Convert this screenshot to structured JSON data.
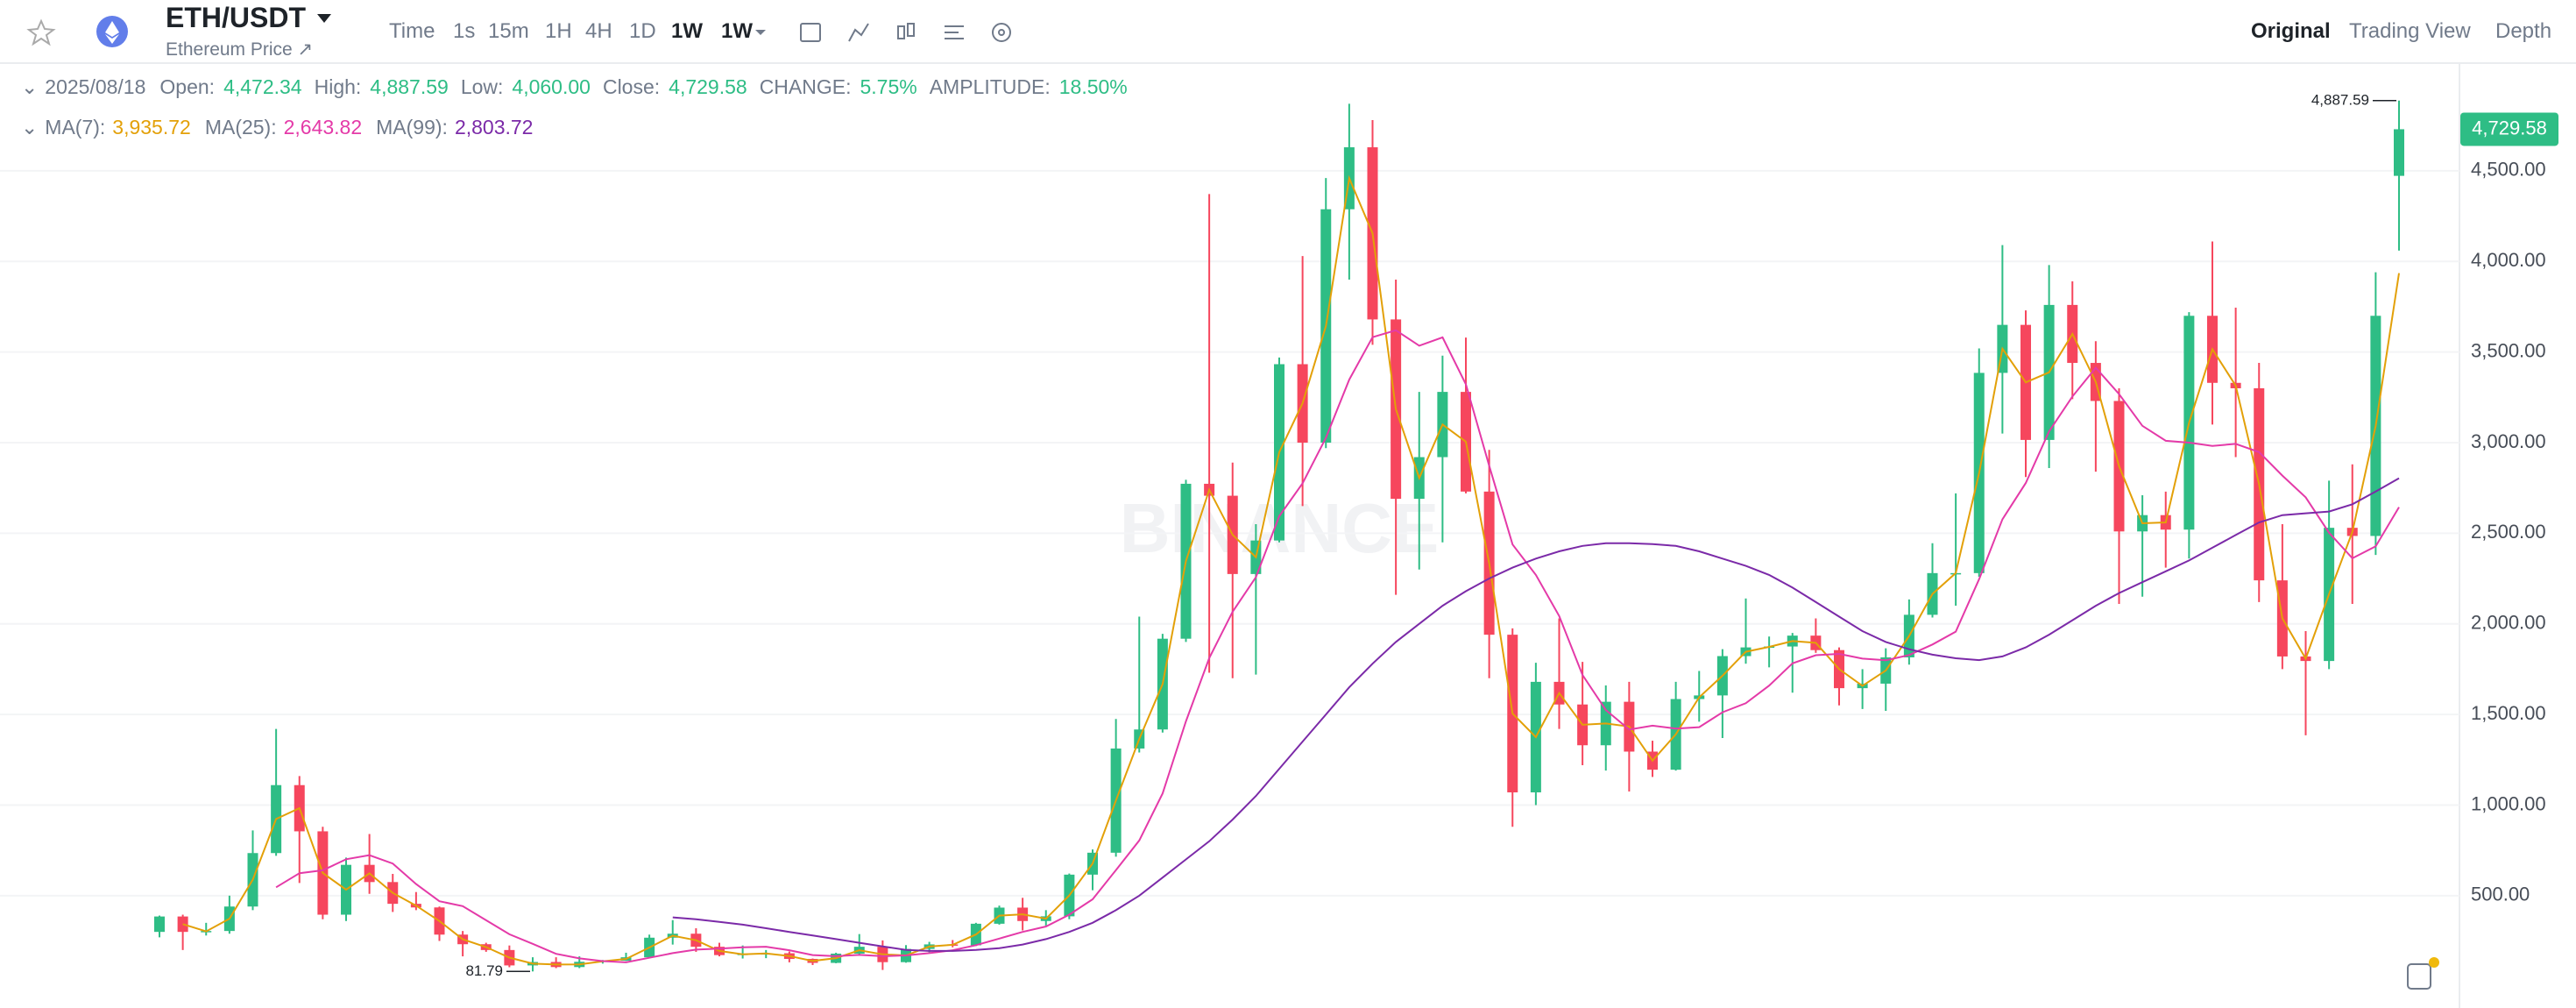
{
  "header": {
    "symbol": "ETH/USDT",
    "subtitle": "Ethereum Price ↗",
    "intervals": [
      "Time",
      "1s",
      "15m",
      "1H",
      "4H",
      "1D",
      "1W",
      "1W"
    ],
    "views": [
      "Original",
      "Trading View",
      "Depth"
    ]
  },
  "info": {
    "date": "2025/08/18",
    "items": [
      {
        "label": "Open:",
        "value": "4,472.34"
      },
      {
        "label": "High:",
        "value": "4,887.59"
      },
      {
        "label": "Low:",
        "value": "4,060.00"
      },
      {
        "label": "Close:",
        "value": "4,729.58"
      },
      {
        "label": "CHANGE:",
        "value": "5.75%"
      },
      {
        "label": "AMPLITUDE:",
        "value": "18.50%"
      }
    ]
  },
  "chart_data": {
    "type": "candlestick",
    "watermark": "BINANCE",
    "up_color": "#2ebd85",
    "down_color": "#f6465d",
    "open": [
      300,
      385,
      300,
      305,
      440,
      735,
      1110,
      855,
      395,
      670,
      575,
      455,
      435,
      285,
      232,
      200,
      115,
      134,
      106,
      135,
      141,
      160,
      268,
      290,
      218,
      172,
      180,
      182,
      151,
      129,
      180,
      218,
      133,
      206,
      231,
      226,
      345,
      434,
      360,
      386,
      616,
      737,
      1312,
      1417,
      1918,
      2773,
      2707,
      2275,
      2460,
      3433,
      3000,
      4288,
      4630,
      3680,
      2690,
      2920,
      3280,
      2730,
      1940,
      1070,
      1680,
      1555,
      1330,
      1570,
      1295,
      1195,
      1585,
      1605,
      1822,
      1870,
      1875,
      1935,
      1855,
      1645,
      1670,
      1815,
      2050,
      2280,
      2280,
      3385,
      3650,
      3015,
      3760,
      3440,
      3230,
      2510,
      2600,
      2520,
      3700,
      3330,
      3300,
      2240,
      1820,
      1795,
      2530,
      2485,
      4472.34
    ],
    "high": [
      390,
      395,
      350,
      500,
      860,
      1420,
      1160,
      880,
      710,
      840,
      620,
      520,
      440,
      305,
      240,
      225,
      160,
      160,
      165,
      145,
      185,
      285,
      365,
      320,
      240,
      225,
      200,
      192,
      153,
      185,
      288,
      253,
      227,
      245,
      255,
      350,
      445,
      488,
      420,
      622,
      755,
      1475,
      2040,
      1945,
      2795,
      4372,
      2890,
      2550,
      3470,
      4030,
      4460,
      4870,
      4780,
      3900,
      3280,
      3480,
      3580,
      2960,
      1975,
      1785,
      2030,
      1790,
      1660,
      1680,
      1355,
      1680,
      1740,
      1860,
      2140,
      1930,
      1950,
      2030,
      1870,
      1750,
      1865,
      2135,
      2445,
      2720,
      3520,
      4090,
      3730,
      3980,
      3890,
      3560,
      3300,
      2710,
      2730,
      3720,
      4110,
      3745,
      3440,
      2550,
      1960,
      2790,
      2880,
      3940,
      4887.59
    ],
    "low": [
      270,
      200,
      280,
      290,
      420,
      720,
      570,
      370,
      360,
      510,
      410,
      420,
      250,
      165,
      190,
      105,
      81.79,
      100,
      100,
      125,
      140,
      155,
      230,
      190,
      165,
      153,
      155,
      132,
      117,
      127,
      175,
      90,
      130,
      180,
      215,
      222,
      340,
      308,
      335,
      370,
      530,
      715,
      1290,
      1400,
      1900,
      1730,
      1700,
      1720,
      2450,
      2650,
      2970,
      3900,
      3540,
      2160,
      2300,
      2450,
      2720,
      1700,
      880,
      1000,
      1420,
      1220,
      1190,
      1075,
      1155,
      1190,
      1460,
      1370,
      1780,
      1760,
      1620,
      1840,
      1550,
      1530,
      1520,
      1775,
      2035,
      2100,
      2260,
      3050,
      2810,
      2860,
      3240,
      2840,
      2110,
      2150,
      2310,
      2360,
      3100,
      2920,
      2120,
      1750,
      1385,
      1750,
      2110,
      2380,
      4060
    ],
    "close": [
      385,
      300,
      305,
      440,
      735,
      1110,
      855,
      395,
      670,
      575,
      455,
      435,
      285,
      232,
      200,
      115,
      134,
      106,
      135,
      141,
      160,
      268,
      290,
      218,
      172,
      180,
      182,
      151,
      129,
      180,
      218,
      133,
      206,
      231,
      226,
      345,
      434,
      360,
      386,
      616,
      737,
      1312,
      1417,
      1918,
      2773,
      2707,
      2275,
      2460,
      3433,
      3000,
      4288,
      4630,
      3680,
      2690,
      2920,
      3280,
      2730,
      1940,
      1070,
      1680,
      1555,
      1330,
      1570,
      1295,
      1195,
      1585,
      1605,
      1822,
      1870,
      1875,
      1935,
      1855,
      1645,
      1670,
      1815,
      2050,
      2280,
      2280,
      3385,
      3650,
      3015,
      3760,
      3440,
      3230,
      2510,
      2600,
      2520,
      3700,
      3330,
      3300,
      2240,
      1820,
      1795,
      2530,
      2485,
      3700,
      4729.58
    ],
    "series": [
      {
        "name": "MA(7):",
        "color": "#e3a008",
        "value_label": "3,935.72",
        "values": [
          null,
          343,
          303,
          373,
          588,
          923,
          983,
          625,
          533,
          623,
          515,
          445,
          360,
          259,
          216,
          158,
          125,
          120,
          121,
          138,
          151,
          214,
          279,
          254,
          195,
          176,
          181,
          167,
          140,
          155,
          199,
          176,
          170,
          219,
          229,
          286,
          390,
          397,
          373,
          501,
          677,
          1025,
          1365,
          1668,
          2346,
          2740,
          2491,
          2368,
          2947,
          3217,
          3644,
          4459,
          4155,
          3185,
          2805,
          3100,
          3005,
          2335,
          1505,
          1375,
          1618,
          1443,
          1450,
          1433,
          1245,
          1390,
          1595,
          1714,
          1846,
          1873,
          1905,
          1895,
          1750,
          1658,
          1743,
          1933,
          2165,
          2280,
          2833,
          3518,
          3333,
          3388,
          3600,
          3335,
          2870,
          2555,
          2560,
          3110,
          3515,
          3315,
          2770,
          2030,
          1808,
          2163,
          2508,
          3093,
          3935.72
        ]
      },
      {
        "name": "MA(25):",
        "color": "#e43aa8",
        "value_label": "2,643.82",
        "values": [
          null,
          null,
          null,
          null,
          null,
          546,
          624,
          640,
          701,
          723,
          677,
          564,
          469,
          442,
          364,
          287,
          234,
          179,
          154,
          139,
          132,
          157,
          183,
          202,
          208,
          215,
          218,
          199,
          172,
          166,
          173,
          166,
          170,
          183,
          199,
          227,
          263,
          300,
          330,
          395,
          480,
          641,
          805,
          1064,
          1462,
          1811,
          2067,
          2258,
          2594,
          2775,
          3027,
          3348,
          3582,
          3620,
          3535,
          3581,
          3322,
          2873,
          2438,
          2270,
          2043,
          1718,
          1524,
          1417,
          1438,
          1422,
          1430,
          1512,
          1562,
          1659,
          1782,
          1827,
          1834,
          1808,
          1799,
          1828,
          1886,
          1957,
          2247,
          2577,
          2777,
          3062,
          3255,
          3413,
          3268,
          3093,
          3010,
          3000,
          2982,
          2993,
          2948,
          2818,
          2698,
          2503,
          2362,
          2428,
          2643.82
        ]
      },
      {
        "name": "MA(99):",
        "color": "#7b2aa8",
        "value_label": "2,803.72",
        "values": [
          null,
          null,
          null,
          null,
          null,
          null,
          null,
          null,
          null,
          null,
          null,
          null,
          null,
          null,
          null,
          null,
          null,
          null,
          null,
          null,
          null,
          null,
          380,
          370,
          355,
          340,
          320,
          300,
          280,
          260,
          240,
          220,
          200,
          195,
          195,
          200,
          210,
          230,
          260,
          300,
          350,
          420,
          500,
          600,
          700,
          800,
          920,
          1050,
          1200,
          1350,
          1500,
          1650,
          1780,
          1900,
          2000,
          2100,
          2180,
          2250,
          2310,
          2360,
          2400,
          2430,
          2445,
          2445,
          2440,
          2430,
          2400,
          2360,
          2320,
          2270,
          2200,
          2120,
          2040,
          1960,
          1900,
          1860,
          1830,
          1810,
          1800,
          1820,
          1870,
          1940,
          2020,
          2100,
          2170,
          2230,
          2290,
          2350,
          2420,
          2490,
          2560,
          2600,
          2610,
          2620,
          2660,
          2730,
          2803.72
        ]
      }
    ],
    "ylim": [
      -120,
      5080
    ],
    "yticks": [
      {
        "value": 500,
        "label": "500.00"
      },
      {
        "value": 1000,
        "label": "1,000.00"
      },
      {
        "value": 1500,
        "label": "1,500.00"
      },
      {
        "value": 2000,
        "label": "2,000.00"
      },
      {
        "value": 2500,
        "label": "2,500.00"
      },
      {
        "value": 3000,
        "label": "3,000.00"
      },
      {
        "value": 3500,
        "label": "3,500.00"
      },
      {
        "value": 4000,
        "label": "4,000.00"
      },
      {
        "value": 4500,
        "label": "4,500.00"
      }
    ],
    "grid": true,
    "annotations": [
      {
        "value": 4887.59,
        "label": "4,887.59"
      },
      {
        "value": 81.79,
        "label": "81.79"
      }
    ],
    "last_price": {
      "value": 4729.58,
      "label": "4,729.58"
    }
  }
}
